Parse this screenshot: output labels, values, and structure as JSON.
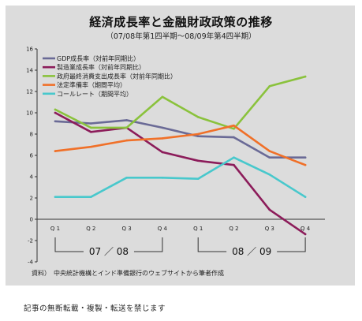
{
  "title": "経済成長率と金融財政政策の推移",
  "subtitle": "（07/08年第1四半期～08/09年第4四半期）",
  "source": "資料）　中央統計機構とインド準備銀行のウェブサイトから筆者作成",
  "copyright": "記事の無断転載・複製・転送を禁じます",
  "chart_data": {
    "type": "line",
    "title": "経済成長率と金融財政政策の推移",
    "subtitle": "（07/08年第1四半期～08/09年第4四半期）",
    "categories": [
      "Q 1",
      "Q 2",
      "Q 3",
      "Q 4",
      "Q 1",
      "Q 2",
      "Q 3",
      "Q 4"
    ],
    "fiscal_years": [
      {
        "label": "07 ／ 08",
        "quarters": [
          0,
          3
        ]
      },
      {
        "label": "08 ／ 09",
        "quarters": [
          4,
          7
        ]
      }
    ],
    "ylim": [
      -4,
      16
    ],
    "yticks": [
      -4,
      -2,
      0,
      2,
      4,
      6,
      8,
      10,
      12,
      14,
      16
    ],
    "grid": false,
    "legend_position": "top-left",
    "series": [
      {
        "name": "GDP成長率（対前年同期比）",
        "color": "#6a6a96",
        "values": [
          9.2,
          9.0,
          9.3,
          8.6,
          7.8,
          7.7,
          5.8,
          5.8
        ]
      },
      {
        "name": "製造業成長率（対前年同期比）",
        "color": "#8c1c5a",
        "values": [
          10.0,
          8.2,
          8.6,
          6.3,
          5.5,
          5.1,
          0.9,
          -1.4
        ]
      },
      {
        "name": "政府最終消費支出成長率（対前年同期比）",
        "color": "#8ac23c",
        "values": [
          10.3,
          8.6,
          8.6,
          11.5,
          9.6,
          8.5,
          12.5,
          13.4
        ]
      },
      {
        "name": "法定準備率（期間平均）",
        "color": "#f07028",
        "values": [
          6.4,
          6.8,
          7.4,
          7.6,
          8.0,
          8.8,
          6.4,
          5.1
        ]
      },
      {
        "name": "コールレート（期間平均）",
        "color": "#48c8cc",
        "values": [
          2.1,
          2.1,
          3.9,
          3.9,
          3.8,
          5.8,
          4.2,
          2.1
        ]
      }
    ]
  }
}
